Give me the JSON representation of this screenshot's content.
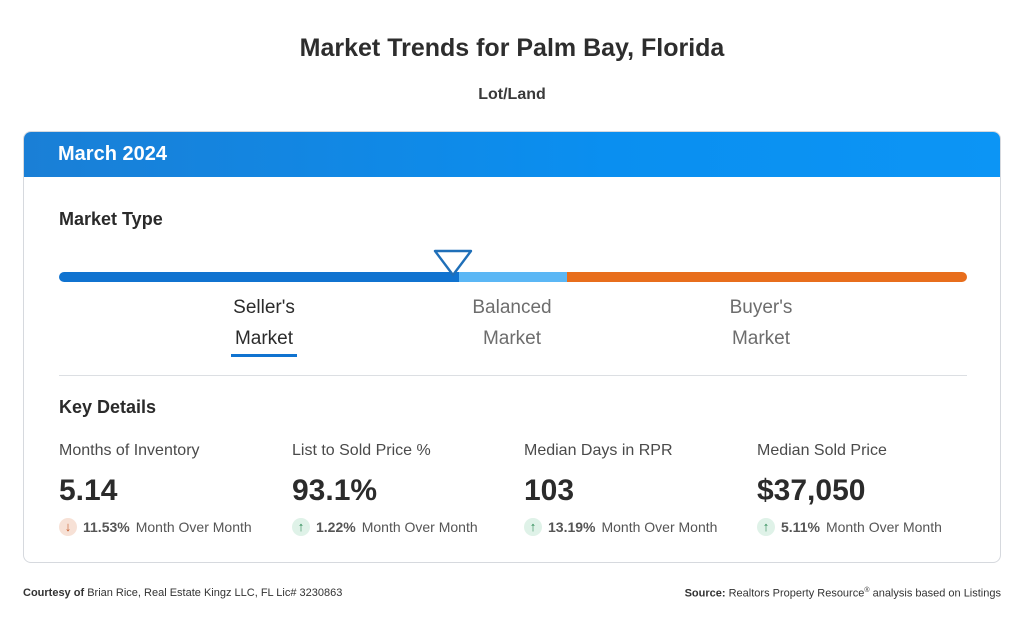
{
  "page": {
    "title": "Market Trends for Palm Bay, Florida",
    "subtitle": "Lot/Land"
  },
  "card": {
    "period": "March 2024",
    "market_type_heading": "Market Type",
    "market_type": {
      "selected": "seller",
      "labels": {
        "seller_line1": "Seller's",
        "seller_line2": "Market",
        "balanced_line1": "Balanced",
        "balanced_line2": "Market",
        "buyer_line1": "Buyer's",
        "buyer_line2": "Market"
      },
      "colors": {
        "seller": "#1073d0",
        "balanced": "#5bb7f5",
        "buyer": "#e86e1c"
      }
    },
    "key_details_heading": "Key Details",
    "metrics": [
      {
        "label": "Months of Inventory",
        "value": "5.14",
        "direction": "down",
        "change": "11.53%",
        "change_label": "Month Over Month"
      },
      {
        "label": "List to Sold Price %",
        "value": "93.1%",
        "direction": "up",
        "change": "1.22%",
        "change_label": "Month Over Month"
      },
      {
        "label": "Median Days in RPR",
        "value": "103",
        "direction": "up",
        "change": "13.19%",
        "change_label": "Month Over Month"
      },
      {
        "label": "Median Sold Price",
        "value": "$37,050",
        "direction": "up",
        "change": "5.11%",
        "change_label": "Month Over Month"
      }
    ]
  },
  "footer": {
    "courtesy_prefix": "Courtesy of",
    "courtesy_text": "Brian Rice, Real Estate Kingz LLC, FL Lic# 3230863",
    "source_prefix": "Source:",
    "source_text_1": "Realtors Property Resource",
    "source_reg": "®",
    "source_text_2": "analysis based on Listings"
  },
  "icons": {
    "up": "arrow-up-icon",
    "down": "arrow-down-icon",
    "indicator": "market-indicator-icon"
  }
}
